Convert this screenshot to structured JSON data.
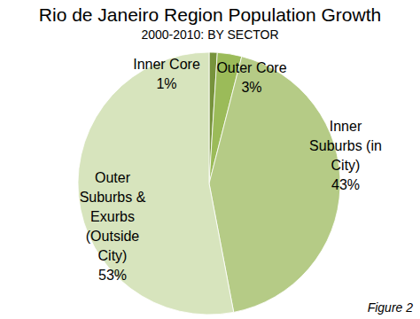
{
  "chart_data": {
    "type": "pie",
    "title": "Rio de Janeiro Region Population Growth",
    "subtitle": "2000-2010: BY SECTOR",
    "categories": [
      "Inner Core",
      "Outer Core",
      "Inner Suburbs (in City)",
      "Outer Suburbs & Exurbs (Outside City)"
    ],
    "values": [
      1,
      3,
      43,
      53
    ],
    "value_labels": [
      "1%",
      "3%",
      "43%",
      "53%"
    ],
    "colors": [
      "#77933c",
      "#9bbb59",
      "#b5cb86",
      "#d7e4bd"
    ],
    "data_labels": true,
    "annotation": "Figure 2"
  }
}
